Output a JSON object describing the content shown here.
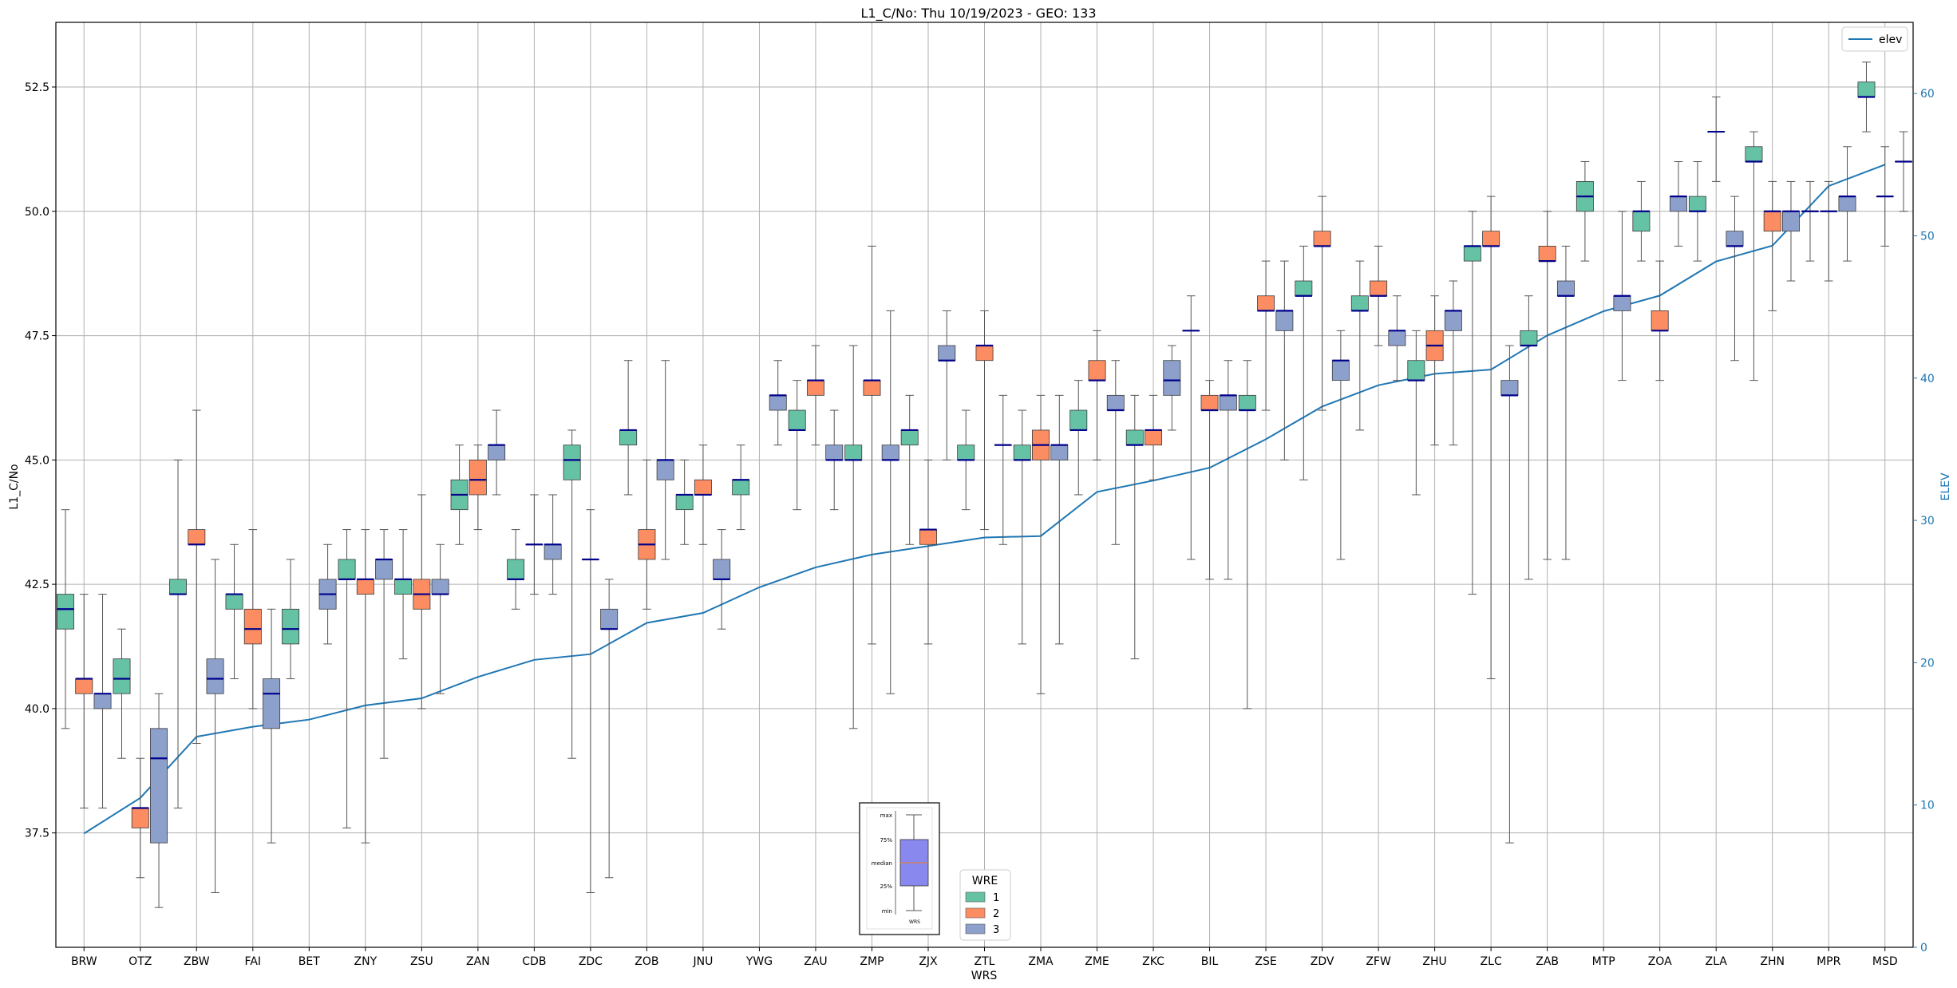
{
  "chart_data": {
    "type": "box",
    "title": "L1_C/No: Thu 10/19/2023 - GEO: 133",
    "xlabel": "WRS",
    "ylabel": "L1_C/No",
    "ylabel_right": "ELEV",
    "ylim": [
      35.2,
      53.8
    ],
    "ylim_right": [
      0,
      65
    ],
    "yticks": [
      "37.5",
      "40.0",
      "42.5",
      "45.0",
      "47.5",
      "50.0",
      "52.5"
    ],
    "yticks_right": [
      "0",
      "10",
      "20",
      "30",
      "40",
      "50",
      "60"
    ],
    "grid": true,
    "categories": [
      "BRW",
      "OTZ",
      "ZBW",
      "FAI",
      "BET",
      "ZNY",
      "ZSU",
      "ZAN",
      "CDB",
      "ZDC",
      "ZOB",
      "JNU",
      "YWG",
      "ZAU",
      "ZMP",
      "ZJX",
      "ZTL",
      "ZMA",
      "ZME",
      "ZKC",
      "BIL",
      "ZSE",
      "ZDV",
      "ZFW",
      "ZHU",
      "ZLC",
      "ZAB",
      "MTP",
      "ZOA",
      "ZLA",
      "ZHN",
      "MPR",
      "MSD"
    ],
    "colors": {
      "1": "#66c2a5",
      "2": "#fc8d62",
      "3": "#8da0cb",
      "median": "#00008b",
      "elev": "#1f77b4",
      "whisker": "#555555",
      "grid": "#b0b0b0"
    },
    "wre_legend": {
      "title": "WRE",
      "labels": [
        "1",
        "2",
        "3"
      ],
      "placement": "lower-center"
    },
    "line_legend": {
      "label": "elev",
      "placement": "top-right"
    },
    "box_key": {
      "labels": [
        "max",
        "75%",
        "median",
        "25%",
        "min"
      ],
      "xlabel": "WRS",
      "placement": "lower-center"
    },
    "boxes": [
      {
        "wrs": "BRW",
        "wre": "1",
        "min": 39.6,
        "q1": 41.6,
        "median": 42.0,
        "q3": 42.3,
        "max": 44.0
      },
      {
        "wrs": "BRW",
        "wre": "2",
        "min": 38.0,
        "q1": 40.3,
        "median": 40.6,
        "q3": 40.6,
        "max": 42.3
      },
      {
        "wrs": "BRW",
        "wre": "3",
        "min": 38.0,
        "q1": 40.0,
        "median": 40.3,
        "q3": 40.3,
        "max": 42.3
      },
      {
        "wrs": "OTZ",
        "wre": "1",
        "min": 39.0,
        "q1": 40.3,
        "median": 40.6,
        "q3": 41.0,
        "max": 41.6
      },
      {
        "wrs": "OTZ",
        "wre": "2",
        "min": 36.6,
        "q1": 37.6,
        "median": 38.0,
        "q3": 38.0,
        "max": 39.0
      },
      {
        "wrs": "OTZ",
        "wre": "3",
        "min": 36.0,
        "q1": 37.3,
        "median": 39.0,
        "q3": 39.6,
        "max": 40.3
      },
      {
        "wrs": "ZBW",
        "wre": "1",
        "min": 38.0,
        "q1": 42.3,
        "median": 42.3,
        "q3": 42.6,
        "max": 45.0
      },
      {
        "wrs": "ZBW",
        "wre": "2",
        "min": 39.3,
        "q1": 43.3,
        "median": 43.3,
        "q3": 43.6,
        "max": 46.0
      },
      {
        "wrs": "ZBW",
        "wre": "3",
        "min": 36.3,
        "q1": 40.3,
        "median": 40.6,
        "q3": 41.0,
        "max": 43.0
      },
      {
        "wrs": "FAI",
        "wre": "1",
        "min": 40.6,
        "q1": 42.0,
        "median": 42.3,
        "q3": 42.3,
        "max": 43.3
      },
      {
        "wrs": "FAI",
        "wre": "2",
        "min": 40.0,
        "q1": 41.3,
        "median": 41.6,
        "q3": 42.0,
        "max": 43.6
      },
      {
        "wrs": "FAI",
        "wre": "3",
        "min": 37.3,
        "q1": 39.6,
        "median": 40.3,
        "q3": 40.6,
        "max": 42.0
      },
      {
        "wrs": "BET",
        "wre": "1",
        "min": 40.6,
        "q1": 41.3,
        "median": 41.6,
        "q3": 42.0,
        "max": 43.0
      },
      {
        "wrs": "BET",
        "wre": "3",
        "min": 41.3,
        "q1": 42.0,
        "median": 42.3,
        "q3": 42.6,
        "max": 43.3
      },
      {
        "wrs": "ZNY",
        "wre": "1",
        "min": 37.6,
        "q1": 42.6,
        "median": 42.6,
        "q3": 43.0,
        "max": 43.6
      },
      {
        "wrs": "ZNY",
        "wre": "2",
        "min": 37.3,
        "q1": 42.3,
        "median": 42.6,
        "q3": 42.6,
        "max": 43.6
      },
      {
        "wrs": "ZNY",
        "wre": "3",
        "min": 39.0,
        "q1": 42.6,
        "median": 43.0,
        "q3": 43.0,
        "max": 43.6
      },
      {
        "wrs": "ZSU",
        "wre": "1",
        "min": 41.0,
        "q1": 42.3,
        "median": 42.6,
        "q3": 42.6,
        "max": 43.6
      },
      {
        "wrs": "ZSU",
        "wre": "2",
        "min": 40.0,
        "q1": 42.0,
        "median": 42.3,
        "q3": 42.6,
        "max": 44.3
      },
      {
        "wrs": "ZSU",
        "wre": "3",
        "min": 40.3,
        "q1": 42.3,
        "median": 42.3,
        "q3": 42.6,
        "max": 43.3
      },
      {
        "wrs": "ZAN",
        "wre": "1",
        "min": 43.3,
        "q1": 44.0,
        "median": 44.3,
        "q3": 44.6,
        "max": 45.3
      },
      {
        "wrs": "ZAN",
        "wre": "2",
        "min": 43.6,
        "q1": 44.3,
        "median": 44.6,
        "q3": 45.0,
        "max": 45.3
      },
      {
        "wrs": "ZAN",
        "wre": "3",
        "min": 44.3,
        "q1": 45.0,
        "median": 45.3,
        "q3": 45.3,
        "max": 46.0
      },
      {
        "wrs": "CDB",
        "wre": "1",
        "min": 42.0,
        "q1": 42.6,
        "median": 42.6,
        "q3": 43.0,
        "max": 43.6
      },
      {
        "wrs": "CDB",
        "wre": "2",
        "min": 42.3,
        "q1": 43.3,
        "median": 43.3,
        "q3": 43.3,
        "max": 44.3
      },
      {
        "wrs": "CDB",
        "wre": "3",
        "min": 42.3,
        "q1": 43.0,
        "median": 43.3,
        "q3": 43.3,
        "max": 44.3
      },
      {
        "wrs": "ZDC",
        "wre": "1",
        "min": 39.0,
        "q1": 44.6,
        "median": 45.0,
        "q3": 45.3,
        "max": 45.6
      },
      {
        "wrs": "ZDC",
        "wre": "2",
        "min": 36.3,
        "q1": 43.0,
        "median": 43.0,
        "q3": 43.0,
        "max": 44.0
      },
      {
        "wrs": "ZDC",
        "wre": "3",
        "min": 36.6,
        "q1": 41.6,
        "median": 41.6,
        "q3": 42.0,
        "max": 42.6
      },
      {
        "wrs": "ZOB",
        "wre": "1",
        "min": 44.3,
        "q1": 45.3,
        "median": 45.6,
        "q3": 45.6,
        "max": 47.0
      },
      {
        "wrs": "ZOB",
        "wre": "2",
        "min": 42.0,
        "q1": 43.0,
        "median": 43.3,
        "q3": 43.6,
        "max": 45.0
      },
      {
        "wrs": "ZOB",
        "wre": "3",
        "min": 43.0,
        "q1": 44.6,
        "median": 45.0,
        "q3": 45.0,
        "max": 47.0
      },
      {
        "wrs": "JNU",
        "wre": "1",
        "min": 43.3,
        "q1": 44.0,
        "median": 44.3,
        "q3": 44.3,
        "max": 45.0
      },
      {
        "wrs": "JNU",
        "wre": "2",
        "min": 43.3,
        "q1": 44.3,
        "median": 44.3,
        "q3": 44.6,
        "max": 45.3
      },
      {
        "wrs": "JNU",
        "wre": "3",
        "min": 41.6,
        "q1": 42.6,
        "median": 42.6,
        "q3": 43.0,
        "max": 43.6
      },
      {
        "wrs": "YWG",
        "wre": "1",
        "min": 43.6,
        "q1": 44.3,
        "median": 44.6,
        "q3": 44.6,
        "max": 45.3
      },
      {
        "wrs": "YWG",
        "wre": "3",
        "min": 45.3,
        "q1": 46.0,
        "median": 46.3,
        "q3": 46.3,
        "max": 47.0
      },
      {
        "wrs": "ZAU",
        "wre": "1",
        "min": 44.0,
        "q1": 45.6,
        "median": 45.6,
        "q3": 46.0,
        "max": 46.6
      },
      {
        "wrs": "ZAU",
        "wre": "2",
        "min": 45.3,
        "q1": 46.3,
        "median": 46.6,
        "q3": 46.6,
        "max": 47.3
      },
      {
        "wrs": "ZAU",
        "wre": "3",
        "min": 44.0,
        "q1": 45.0,
        "median": 45.0,
        "q3": 45.3,
        "max": 46.0
      },
      {
        "wrs": "ZMP",
        "wre": "1",
        "min": 39.6,
        "q1": 45.0,
        "median": 45.0,
        "q3": 45.3,
        "max": 47.3
      },
      {
        "wrs": "ZMP",
        "wre": "2",
        "min": 41.3,
        "q1": 46.3,
        "median": 46.6,
        "q3": 46.6,
        "max": 49.3
      },
      {
        "wrs": "ZMP",
        "wre": "3",
        "min": 40.3,
        "q1": 45.0,
        "median": 45.0,
        "q3": 45.3,
        "max": 48.0
      },
      {
        "wrs": "ZJX",
        "wre": "1",
        "min": 43.3,
        "q1": 45.3,
        "median": 45.6,
        "q3": 45.6,
        "max": 46.3
      },
      {
        "wrs": "ZJX",
        "wre": "2",
        "min": 41.3,
        "q1": 43.3,
        "median": 43.6,
        "q3": 43.6,
        "max": 45.0
      },
      {
        "wrs": "ZJX",
        "wre": "3",
        "min": 45.0,
        "q1": 47.0,
        "median": 47.0,
        "q3": 47.3,
        "max": 48.0
      },
      {
        "wrs": "ZTL",
        "wre": "1",
        "min": 44.0,
        "q1": 45.0,
        "median": 45.0,
        "q3": 45.3,
        "max": 46.0
      },
      {
        "wrs": "ZTL",
        "wre": "2",
        "min": 43.6,
        "q1": 47.0,
        "median": 47.3,
        "q3": 47.3,
        "max": 48.0
      },
      {
        "wrs": "ZTL",
        "wre": "3",
        "min": 43.3,
        "q1": 45.3,
        "median": 45.3,
        "q3": 45.3,
        "max": 46.3
      },
      {
        "wrs": "ZMA",
        "wre": "1",
        "min": 41.3,
        "q1": 45.0,
        "median": 45.0,
        "q3": 45.3,
        "max": 46.0
      },
      {
        "wrs": "ZMA",
        "wre": "2",
        "min": 40.3,
        "q1": 45.0,
        "median": 45.3,
        "q3": 45.6,
        "max": 46.3
      },
      {
        "wrs": "ZMA",
        "wre": "3",
        "min": 41.3,
        "q1": 45.0,
        "median": 45.3,
        "q3": 45.3,
        "max": 46.3
      },
      {
        "wrs": "ZME",
        "wre": "1",
        "min": 44.3,
        "q1": 45.6,
        "median": 45.6,
        "q3": 46.0,
        "max": 46.6
      },
      {
        "wrs": "ZME",
        "wre": "2",
        "min": 45.0,
        "q1": 46.6,
        "median": 46.6,
        "q3": 47.0,
        "max": 47.6
      },
      {
        "wrs": "ZME",
        "wre": "3",
        "min": 43.3,
        "q1": 46.0,
        "median": 46.0,
        "q3": 46.3,
        "max": 47.0
      },
      {
        "wrs": "ZKC",
        "wre": "1",
        "min": 41.0,
        "q1": 45.3,
        "median": 45.3,
        "q3": 45.6,
        "max": 46.3
      },
      {
        "wrs": "ZKC",
        "wre": "2",
        "min": 44.6,
        "q1": 45.3,
        "median": 45.6,
        "q3": 45.6,
        "max": 46.3
      },
      {
        "wrs": "ZKC",
        "wre": "3",
        "min": 45.6,
        "q1": 46.3,
        "median": 46.6,
        "q3": 47.0,
        "max": 47.3
      },
      {
        "wrs": "BIL",
        "wre": "1",
        "min": 43.0,
        "q1": 47.6,
        "median": 47.6,
        "q3": 47.6,
        "max": 48.3
      },
      {
        "wrs": "BIL",
        "wre": "2",
        "min": 42.6,
        "q1": 46.0,
        "median": 46.0,
        "q3": 46.3,
        "max": 46.6
      },
      {
        "wrs": "BIL",
        "wre": "3",
        "min": 42.6,
        "q1": 46.0,
        "median": 46.3,
        "q3": 46.3,
        "max": 47.0
      },
      {
        "wrs": "ZSE",
        "wre": "1",
        "min": 40.0,
        "q1": 46.0,
        "median": 46.0,
        "q3": 46.3,
        "max": 47.0
      },
      {
        "wrs": "ZSE",
        "wre": "2",
        "min": 46.0,
        "q1": 48.0,
        "median": 48.0,
        "q3": 48.3,
        "max": 49.0
      },
      {
        "wrs": "ZSE",
        "wre": "3",
        "min": 45.0,
        "q1": 47.6,
        "median": 48.0,
        "q3": 48.0,
        "max": 49.0
      },
      {
        "wrs": "ZDV",
        "wre": "1",
        "min": 44.6,
        "q1": 48.3,
        "median": 48.3,
        "q3": 48.6,
        "max": 49.3
      },
      {
        "wrs": "ZDV",
        "wre": "2",
        "min": 46.0,
        "q1": 49.3,
        "median": 49.3,
        "q3": 49.6,
        "max": 50.3
      },
      {
        "wrs": "ZDV",
        "wre": "3",
        "min": 43.0,
        "q1": 46.6,
        "median": 47.0,
        "q3": 47.0,
        "max": 47.6
      },
      {
        "wrs": "ZFW",
        "wre": "1",
        "min": 45.6,
        "q1": 48.0,
        "median": 48.0,
        "q3": 48.3,
        "max": 49.0
      },
      {
        "wrs": "ZFW",
        "wre": "2",
        "min": 47.3,
        "q1": 48.3,
        "median": 48.3,
        "q3": 48.6,
        "max": 49.3
      },
      {
        "wrs": "ZFW",
        "wre": "3",
        "min": 46.6,
        "q1": 47.3,
        "median": 47.6,
        "q3": 47.6,
        "max": 48.3
      },
      {
        "wrs": "ZHU",
        "wre": "1",
        "min": 44.3,
        "q1": 46.6,
        "median": 46.6,
        "q3": 47.0,
        "max": 47.6
      },
      {
        "wrs": "ZHU",
        "wre": "2",
        "min": 45.3,
        "q1": 47.0,
        "median": 47.3,
        "q3": 47.6,
        "max": 48.3
      },
      {
        "wrs": "ZHU",
        "wre": "3",
        "min": 45.3,
        "q1": 47.6,
        "median": 48.0,
        "q3": 48.0,
        "max": 48.6
      },
      {
        "wrs": "ZLC",
        "wre": "1",
        "min": 42.3,
        "q1": 49.0,
        "median": 49.3,
        "q3": 49.3,
        "max": 50.0
      },
      {
        "wrs": "ZLC",
        "wre": "2",
        "min": 40.6,
        "q1": 49.3,
        "median": 49.3,
        "q3": 49.6,
        "max": 50.3
      },
      {
        "wrs": "ZLC",
        "wre": "3",
        "min": 37.3,
        "q1": 46.3,
        "median": 46.3,
        "q3": 46.6,
        "max": 47.3
      },
      {
        "wrs": "ZAB",
        "wre": "1",
        "min": 42.6,
        "q1": 47.3,
        "median": 47.3,
        "q3": 47.6,
        "max": 48.3
      },
      {
        "wrs": "ZAB",
        "wre": "2",
        "min": 43.0,
        "q1": 49.0,
        "median": 49.0,
        "q3": 49.3,
        "max": 50.0
      },
      {
        "wrs": "ZAB",
        "wre": "3",
        "min": 43.0,
        "q1": 48.3,
        "median": 48.3,
        "q3": 48.6,
        "max": 49.3
      },
      {
        "wrs": "MTP",
        "wre": "1",
        "min": 49.0,
        "q1": 50.0,
        "median": 50.3,
        "q3": 50.6,
        "max": 51.0
      },
      {
        "wrs": "MTP",
        "wre": "3",
        "min": 46.6,
        "q1": 48.0,
        "median": 48.3,
        "q3": 48.3,
        "max": 50.0
      },
      {
        "wrs": "ZOA",
        "wre": "1",
        "min": 49.0,
        "q1": 49.6,
        "median": 50.0,
        "q3": 50.0,
        "max": 50.6
      },
      {
        "wrs": "ZOA",
        "wre": "2",
        "min": 46.6,
        "q1": 47.6,
        "median": 47.6,
        "q3": 48.0,
        "max": 49.0
      },
      {
        "wrs": "ZOA",
        "wre": "3",
        "min": 49.3,
        "q1": 50.0,
        "median": 50.3,
        "q3": 50.3,
        "max": 51.0
      },
      {
        "wrs": "ZLA",
        "wre": "1",
        "min": 49.0,
        "q1": 50.0,
        "median": 50.0,
        "q3": 50.3,
        "max": 51.0
      },
      {
        "wrs": "ZLA",
        "wre": "2",
        "min": 50.6,
        "q1": 51.6,
        "median": 51.6,
        "q3": 51.6,
        "max": 52.3
      },
      {
        "wrs": "ZLA",
        "wre": "3",
        "min": 47.0,
        "q1": 49.3,
        "median": 49.3,
        "q3": 49.6,
        "max": 50.3
      },
      {
        "wrs": "ZHN",
        "wre": "1",
        "min": 46.6,
        "q1": 51.0,
        "median": 51.0,
        "q3": 51.3,
        "max": 51.6
      },
      {
        "wrs": "ZHN",
        "wre": "2",
        "min": 48.0,
        "q1": 49.6,
        "median": 50.0,
        "q3": 50.0,
        "max": 50.6
      },
      {
        "wrs": "ZHN",
        "wre": "3",
        "min": 48.6,
        "q1": 49.6,
        "median": 50.0,
        "q3": 50.0,
        "max": 50.6
      },
      {
        "wrs": "MPR",
        "wre": "1",
        "min": 49.0,
        "q1": 50.0,
        "median": 50.0,
        "q3": 50.0,
        "max": 50.6
      },
      {
        "wrs": "MPR",
        "wre": "2",
        "min": 48.6,
        "q1": 50.0,
        "median": 50.0,
        "q3": 50.0,
        "max": 50.6
      },
      {
        "wrs": "MPR",
        "wre": "3",
        "min": 49.0,
        "q1": 50.0,
        "median": 50.3,
        "q3": 50.3,
        "max": 51.3
      },
      {
        "wrs": "MSD",
        "wre": "1",
        "min": 51.6,
        "q1": 52.3,
        "median": 52.3,
        "q3": 52.6,
        "max": 53.0
      },
      {
        "wrs": "MSD",
        "wre": "2",
        "min": 49.3,
        "q1": 50.3,
        "median": 50.3,
        "q3": 50.3,
        "max": 51.3
      },
      {
        "wrs": "MSD",
        "wre": "3",
        "min": 50.0,
        "q1": 51.0,
        "median": 51.0,
        "q3": 51.0,
        "max": 51.6
      }
    ],
    "elev": [
      8.0,
      10.5,
      14.8,
      15.5,
      16.0,
      17.0,
      17.5,
      19.0,
      20.2,
      20.6,
      22.8,
      23.5,
      25.3,
      26.7,
      27.6,
      28.2,
      28.8,
      28.9,
      32.0,
      32.8,
      33.7,
      35.7,
      38.0,
      39.5,
      40.3,
      40.6,
      43.0,
      44.7,
      45.8,
      48.2,
      49.3,
      53.5,
      55.0
    ]
  }
}
